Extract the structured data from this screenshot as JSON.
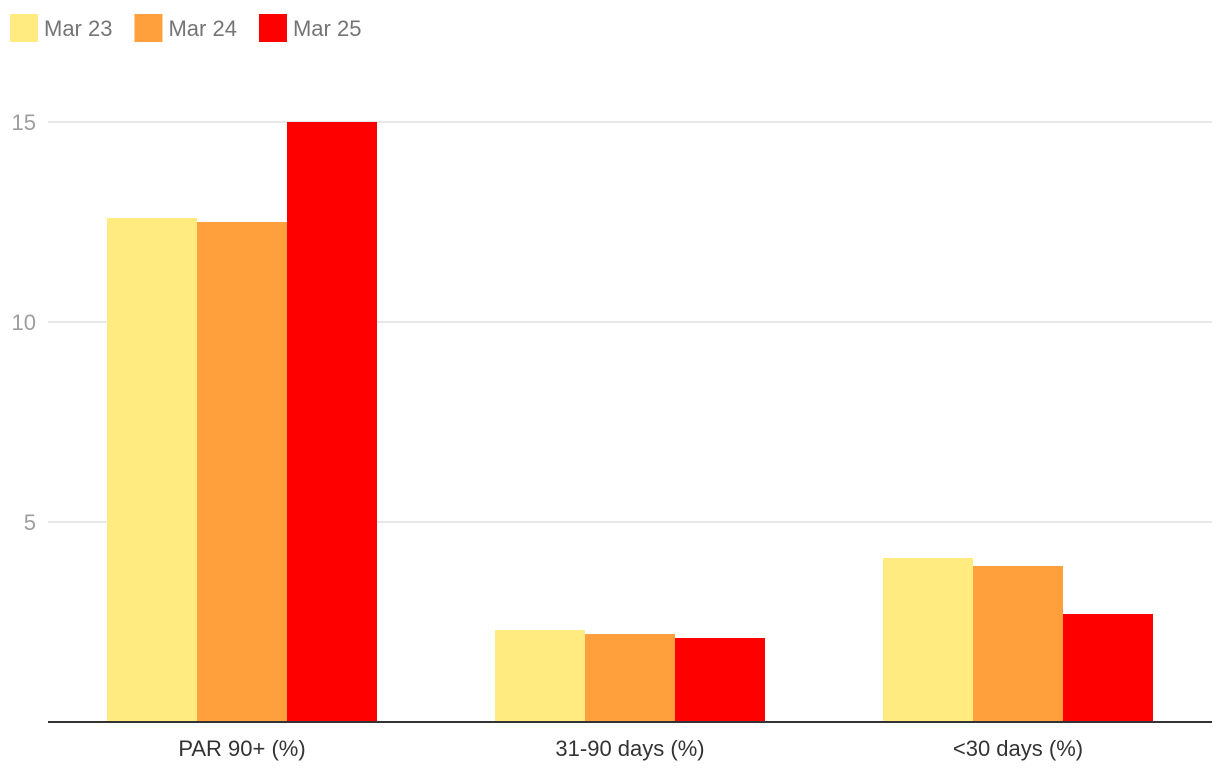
{
  "chart_data": {
    "type": "bar",
    "categories": [
      "PAR 90+ (%)",
      "31-90 days (%)",
      "<30 days (%)"
    ],
    "series": [
      {
        "name": "Mar 23",
        "color": "#FFEB80",
        "values": [
          12.6,
          2.3,
          4.1
        ]
      },
      {
        "name": "Mar 24",
        "color": "#FFA03C",
        "values": [
          12.5,
          2.2,
          3.9
        ]
      },
      {
        "name": "Mar 25",
        "color": "#FF0000",
        "values": [
          15.0,
          2.1,
          2.7
        ]
      }
    ],
    "y_ticks": [
      5,
      10,
      15
    ],
    "ylim": [
      0,
      15
    ],
    "grid": true,
    "legend_position": "top-left",
    "title": "",
    "xlabel": "",
    "ylabel": ""
  }
}
